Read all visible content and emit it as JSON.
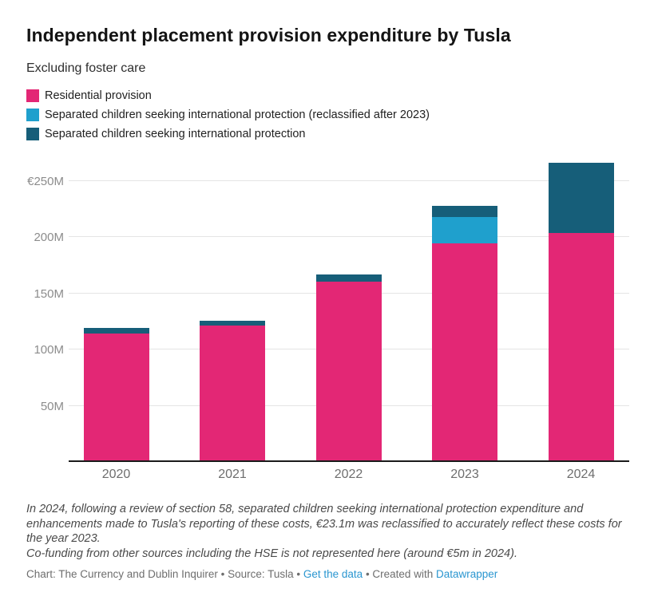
{
  "header": {
    "title": "Independent placement provision expenditure by Tusla",
    "subtitle": "Excluding foster care"
  },
  "legend": {
    "items": [
      {
        "label": "Residential provision",
        "color": "#e32775"
      },
      {
        "label": "Separated children seeking international protection (reclassified after 2023)",
        "color": "#1fa0cd"
      },
      {
        "label": "Separated children seeking international protection",
        "color": "#165e79"
      }
    ]
  },
  "chart_data": {
    "type": "bar",
    "stacked": true,
    "title": "Independent placement provision expenditure by Tusla",
    "subtitle": "Excluding foster care",
    "unit": "EUR millions",
    "categories": [
      "2020",
      "2021",
      "2022",
      "2023",
      "2024"
    ],
    "series": [
      {
        "name": "Residential provision",
        "color": "#e32775",
        "values": [
          114.5,
          121.5,
          160.5,
          194.5,
          204
        ]
      },
      {
        "name": "Separated children seeking international protection (reclassified after 2023)",
        "color": "#1fa0cd",
        "values": [
          0,
          0,
          0,
          23.1,
          0
        ]
      },
      {
        "name": "Separated children seeking international protection",
        "color": "#165e79",
        "values": [
          4.5,
          4,
          6,
          10,
          62
        ]
      }
    ],
    "ylim": [
      0,
      265
    ],
    "yticks": [
      {
        "value": 50,
        "label": "50M"
      },
      {
        "value": 100,
        "label": "100M"
      },
      {
        "value": 150,
        "label": "150M"
      },
      {
        "value": 200,
        "label": "200M"
      },
      {
        "value": 250,
        "label": "€250M"
      }
    ],
    "grid": true,
    "legend_position": "top"
  },
  "footnotes": [
    "In 2024, following a review of section 58, separated children seeking international protection expenditure and enhancements made to Tusla's reporting of these costs, €23.1m was reclassified to accurately reflect these costs for the year 2023.",
    "Co-funding from other sources including the HSE is not represented here (around €5m in 2024)."
  ],
  "credits": {
    "prefix": "Chart: The Currency and Dublin Inquirer • Source: Tusla • ",
    "data_link": "Get the data",
    "middle": " • Created with ",
    "tool_link": "Datawrapper",
    "link_color": "#2a96d0"
  }
}
